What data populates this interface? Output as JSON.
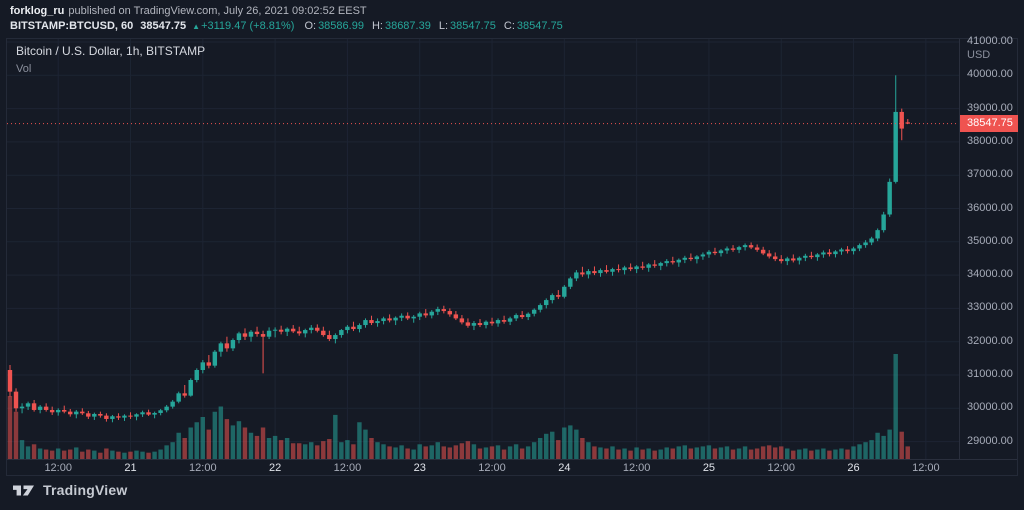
{
  "header": {
    "user": "forklog_ru",
    "published": "published on TradingView.com, July 26, 2021 09:02:52 EEST",
    "symbol": "BITSTAMP:BTCUSD, 60",
    "last": "38547.75",
    "arrow": "▲",
    "change": "+3119.47 (+8.81%)",
    "ohlc": [
      {
        "label": "O:",
        "value": "38586.99"
      },
      {
        "label": "H:",
        "value": "38687.39"
      },
      {
        "label": "L:",
        "value": "38547.75"
      },
      {
        "label": "C:",
        "value": "38547.75"
      }
    ]
  },
  "legend": {
    "title": "Bitcoin / U.S. Dollar, 1h, BITSTAMP",
    "indicator": "Vol"
  },
  "footer": {
    "brand": "TradingView"
  },
  "colors": {
    "background": "#151a25",
    "grid": "#1d2433",
    "up": "#26a69a",
    "down": "#ef5350",
    "last_price": "#ef5350",
    "text_primary": "#d1d4dc",
    "text_secondary": "#a7acb9"
  },
  "price_axis": {
    "currency": "USD",
    "ticks": [
      41000,
      40000,
      39000,
      38000,
      37000,
      36000,
      35000,
      34000,
      33000,
      32000,
      31000,
      30000,
      29000
    ],
    "last_price": 38547.75
  },
  "time_axis": {
    "ticks": [
      {
        "label": "12:00",
        "index": 8,
        "day": false
      },
      {
        "label": "21",
        "index": 20,
        "day": true
      },
      {
        "label": "12:00",
        "index": 32,
        "day": false
      },
      {
        "label": "22",
        "index": 44,
        "day": true
      },
      {
        "label": "12:00",
        "index": 56,
        "day": false
      },
      {
        "label": "23",
        "index": 68,
        "day": true
      },
      {
        "label": "12:00",
        "index": 80,
        "day": false
      },
      {
        "label": "24",
        "index": 92,
        "day": true
      },
      {
        "label": "12:00",
        "index": 104,
        "day": false
      },
      {
        "label": "25",
        "index": 116,
        "day": true
      },
      {
        "label": "12:00",
        "index": 128,
        "day": false
      },
      {
        "label": "26",
        "index": 140,
        "day": true
      },
      {
        "label": "12:00",
        "index": 152,
        "day": false
      }
    ]
  },
  "chart_data": {
    "type": "candlestick",
    "title": "Bitcoin / U.S. Dollar",
    "exchange": "BITSTAMP",
    "interval": "1h",
    "ylabel": "USD",
    "ylim": [
      29000,
      41000
    ],
    "last_price": 38547.75,
    "volume_unit": "relative",
    "candles_format": [
      "open",
      "high",
      "low",
      "close",
      "volume"
    ],
    "candles": [
      [
        31150,
        31300,
        30350,
        30500,
        60
      ],
      [
        30500,
        30600,
        29900,
        30000,
        45
      ],
      [
        30000,
        30150,
        29850,
        30050,
        18
      ],
      [
        30050,
        30200,
        29950,
        30150,
        12
      ],
      [
        30150,
        30250,
        29900,
        29950,
        14
      ],
      [
        29950,
        30100,
        29850,
        30050,
        10
      ],
      [
        30050,
        30150,
        29900,
        29950,
        9
      ],
      [
        29950,
        30050,
        29800,
        29880,
        8
      ],
      [
        29880,
        30000,
        29780,
        29950,
        10
      ],
      [
        29950,
        30080,
        29850,
        29900,
        8
      ],
      [
        29900,
        29980,
        29750,
        29820,
        9
      ],
      [
        29820,
        29950,
        29700,
        29900,
        11
      ],
      [
        29900,
        30000,
        29800,
        29850,
        7
      ],
      [
        29850,
        29920,
        29680,
        29750,
        9
      ],
      [
        29750,
        29870,
        29650,
        29830,
        8
      ],
      [
        29830,
        29900,
        29720,
        29780,
        6
      ],
      [
        29780,
        29850,
        29600,
        29680,
        10
      ],
      [
        29680,
        29800,
        29580,
        29760,
        8
      ],
      [
        29760,
        29850,
        29650,
        29720,
        7
      ],
      [
        29720,
        29820,
        29620,
        29780,
        6
      ],
      [
        29780,
        29880,
        29680,
        29750,
        7
      ],
      [
        29750,
        29850,
        29640,
        29820,
        8
      ],
      [
        29820,
        29930,
        29740,
        29880,
        7
      ],
      [
        29880,
        29960,
        29770,
        29810,
        6
      ],
      [
        29810,
        29900,
        29700,
        29860,
        7
      ],
      [
        29860,
        29980,
        29790,
        29940,
        9
      ],
      [
        29940,
        30100,
        29880,
        30050,
        13
      ],
      [
        30050,
        30250,
        29990,
        30200,
        16
      ],
      [
        30200,
        30500,
        30150,
        30450,
        25
      ],
      [
        30450,
        30700,
        30320,
        30380,
        20
      ],
      [
        30380,
        30900,
        30350,
        30850,
        30
      ],
      [
        30850,
        31200,
        30780,
        31150,
        35
      ],
      [
        31150,
        31450,
        31050,
        31380,
        40
      ],
      [
        31380,
        31600,
        31200,
        31280,
        28
      ],
      [
        31280,
        31750,
        31220,
        31700,
        45
      ],
      [
        31700,
        32000,
        31550,
        31950,
        50
      ],
      [
        31950,
        32150,
        31700,
        31800,
        38
      ],
      [
        31800,
        32100,
        31720,
        32050,
        32
      ],
      [
        32050,
        32300,
        31950,
        32250,
        36
      ],
      [
        32250,
        32400,
        32050,
        32150,
        30
      ],
      [
        32150,
        32350,
        32000,
        32300,
        25
      ],
      [
        32300,
        32450,
        32150,
        32230,
        22
      ],
      [
        32230,
        32330,
        31050,
        32150,
        30
      ],
      [
        32150,
        32430,
        32080,
        32330,
        20
      ],
      [
        32330,
        32430,
        32130,
        32360,
        22
      ],
      [
        32360,
        32480,
        32220,
        32300,
        18
      ],
      [
        32300,
        32430,
        32170,
        32390,
        20
      ],
      [
        32390,
        32500,
        32260,
        32310,
        15
      ],
      [
        32310,
        32450,
        32180,
        32250,
        15
      ],
      [
        32250,
        32390,
        32130,
        32350,
        14
      ],
      [
        32350,
        32500,
        32250,
        32420,
        16
      ],
      [
        32420,
        32520,
        32280,
        32330,
        13
      ],
      [
        32330,
        32450,
        32150,
        32200,
        17
      ],
      [
        32200,
        32330,
        32020,
        32080,
        19
      ],
      [
        32080,
        32250,
        31950,
        32200,
        42
      ],
      [
        32200,
        32380,
        32120,
        32350,
        16
      ],
      [
        32350,
        32500,
        32250,
        32450,
        18
      ],
      [
        32450,
        32600,
        32320,
        32380,
        14
      ],
      [
        32380,
        32550,
        32280,
        32500,
        35
      ],
      [
        32500,
        32700,
        32420,
        32650,
        28
      ],
      [
        32650,
        32780,
        32500,
        32560,
        20
      ],
      [
        32560,
        32700,
        32450,
        32620,
        16
      ],
      [
        32620,
        32750,
        32520,
        32700,
        14
      ],
      [
        32700,
        32820,
        32580,
        32640,
        12
      ],
      [
        32640,
        32760,
        32500,
        32720,
        11
      ],
      [
        32720,
        32850,
        32620,
        32780,
        13
      ],
      [
        32780,
        32880,
        32650,
        32700,
        10
      ],
      [
        32700,
        32800,
        32570,
        32750,
        9
      ],
      [
        32750,
        32900,
        32650,
        32850,
        14
      ],
      [
        32850,
        32980,
        32720,
        32790,
        12
      ],
      [
        32790,
        32950,
        32700,
        32900,
        13
      ],
      [
        32900,
        33050,
        32800,
        32980,
        16
      ],
      [
        32980,
        33080,
        32850,
        32920,
        12
      ],
      [
        32920,
        33000,
        32750,
        32820,
        11
      ],
      [
        32820,
        32920,
        32650,
        32700,
        13
      ],
      [
        32700,
        32800,
        32520,
        32580,
        15
      ],
      [
        32580,
        32700,
        32420,
        32480,
        17
      ],
      [
        32480,
        32620,
        32350,
        32560,
        14
      ],
      [
        32560,
        32680,
        32440,
        32500,
        10
      ],
      [
        32500,
        32640,
        32400,
        32600,
        11
      ],
      [
        32600,
        32720,
        32480,
        32550,
        12
      ],
      [
        32550,
        32700,
        32450,
        32650,
        13
      ],
      [
        32650,
        32780,
        32540,
        32600,
        9
      ],
      [
        32600,
        32750,
        32500,
        32700,
        12
      ],
      [
        32700,
        32850,
        32620,
        32800,
        14
      ],
      [
        32800,
        32920,
        32680,
        32740,
        10
      ],
      [
        32740,
        32880,
        32650,
        32840,
        12
      ],
      [
        32840,
        33000,
        32760,
        32960,
        16
      ],
      [
        32960,
        33150,
        32880,
        33100,
        20
      ],
      [
        33100,
        33300,
        33000,
        33250,
        24
      ],
      [
        33250,
        33450,
        33150,
        33400,
        26
      ],
      [
        33400,
        33550,
        33280,
        33350,
        18
      ],
      [
        33350,
        33700,
        33300,
        33650,
        30
      ],
      [
        33650,
        33950,
        33580,
        33900,
        32
      ],
      [
        33900,
        34150,
        33820,
        34080,
        28
      ],
      [
        34080,
        34250,
        33950,
        34020,
        20
      ],
      [
        34020,
        34180,
        33900,
        34120,
        16
      ],
      [
        34120,
        34260,
        34000,
        34060,
        12
      ],
      [
        34060,
        34200,
        33950,
        34150,
        11
      ],
      [
        34150,
        34300,
        34050,
        34100,
        10
      ],
      [
        34100,
        34220,
        33980,
        34180,
        12
      ],
      [
        34180,
        34320,
        34080,
        34150,
        9
      ],
      [
        34150,
        34280,
        34020,
        34230,
        10
      ],
      [
        34230,
        34350,
        34120,
        34180,
        8
      ],
      [
        34180,
        34300,
        34060,
        34260,
        11
      ],
      [
        34260,
        34400,
        34160,
        34220,
        9
      ],
      [
        34220,
        34360,
        34100,
        34320,
        10
      ],
      [
        34320,
        34450,
        34220,
        34280,
        8
      ],
      [
        34280,
        34400,
        34150,
        34360,
        9
      ],
      [
        34360,
        34480,
        34260,
        34420,
        11
      ],
      [
        34420,
        34550,
        34320,
        34380,
        10
      ],
      [
        34380,
        34500,
        34250,
        34460,
        12
      ],
      [
        34460,
        34580,
        34360,
        34520,
        13
      ],
      [
        34520,
        34650,
        34420,
        34480,
        10
      ],
      [
        34480,
        34600,
        34350,
        34560,
        11
      ],
      [
        34560,
        34680,
        34460,
        34620,
        12
      ],
      [
        34620,
        34750,
        34520,
        34700,
        13
      ],
      [
        34700,
        34820,
        34600,
        34660,
        10
      ],
      [
        34660,
        34780,
        34560,
        34740,
        11
      ],
      [
        34740,
        34860,
        34640,
        34800,
        12
      ],
      [
        34800,
        34900,
        34700,
        34760,
        9
      ],
      [
        34760,
        34880,
        34660,
        34840,
        10
      ],
      [
        34840,
        34950,
        34740,
        34900,
        12
      ],
      [
        34900,
        34980,
        34780,
        34830,
        9
      ],
      [
        34830,
        34920,
        34700,
        34760,
        10
      ],
      [
        34760,
        34850,
        34600,
        34650,
        12
      ],
      [
        34650,
        34750,
        34500,
        34560,
        13
      ],
      [
        34560,
        34680,
        34420,
        34480,
        11
      ],
      [
        34480,
        34600,
        34350,
        34420,
        12
      ],
      [
        34420,
        34550,
        34300,
        34500,
        10
      ],
      [
        34500,
        34620,
        34380,
        34440,
        8
      ],
      [
        34440,
        34560,
        34320,
        34520,
        9
      ],
      [
        34520,
        34640,
        34420,
        34580,
        10
      ],
      [
        34580,
        34700,
        34480,
        34540,
        8
      ],
      [
        34540,
        34660,
        34430,
        34620,
        9
      ],
      [
        34620,
        34740,
        34520,
        34680,
        10
      ],
      [
        34680,
        34780,
        34560,
        34630,
        8
      ],
      [
        34630,
        34750,
        34530,
        34710,
        9
      ],
      [
        34710,
        34820,
        34610,
        34770,
        10
      ],
      [
        34770,
        34870,
        34650,
        34720,
        9
      ],
      [
        34720,
        34850,
        34620,
        34800,
        12
      ],
      [
        34800,
        34950,
        34720,
        34900,
        14
      ],
      [
        34900,
        35050,
        34820,
        34980,
        16
      ],
      [
        34980,
        35150,
        34900,
        35100,
        18
      ],
      [
        35100,
        35400,
        35020,
        35350,
        25
      ],
      [
        35350,
        35900,
        35280,
        35820,
        22
      ],
      [
        35820,
        36900,
        35750,
        36800,
        28
      ],
      [
        36800,
        40000,
        36750,
        38900,
        100
      ],
      [
        38900,
        39000,
        38050,
        38400,
        26
      ],
      [
        38586.99,
        38687.39,
        38547.75,
        38547.75,
        12
      ]
    ]
  }
}
